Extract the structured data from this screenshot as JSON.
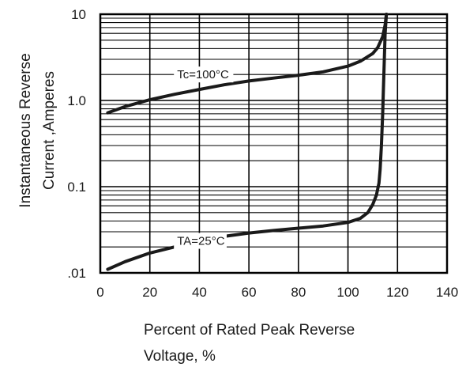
{
  "chart_data": {
    "type": "line",
    "title": "",
    "xlabel_lines": [
      "Percent of Rated Peak Reverse",
      "Voltage, %"
    ],
    "ylabel_lines": [
      "Instantaneous Reverse",
      "Current ,Amperes"
    ],
    "xlim": [
      0,
      140
    ],
    "ylim": [
      0.01,
      10
    ],
    "yscale": "log",
    "grid": true,
    "x_ticks": [
      0,
      20,
      40,
      60,
      80,
      100,
      120,
      140
    ],
    "x_tick_labels": [
      "0",
      "20",
      "40",
      "60",
      "80",
      "100",
      "120",
      "140"
    ],
    "y_ticks": [
      0.01,
      0.1,
      1.0,
      10
    ],
    "y_tick_labels": [
      ".01",
      "0.1",
      "1.0",
      "10"
    ],
    "series": [
      {
        "name": "Tc=100°C",
        "x": [
          3,
          10,
          20,
          30,
          40,
          50,
          60,
          70,
          80,
          90,
          100,
          105,
          110,
          112,
          114,
          115,
          115.5
        ],
        "y": [
          0.72,
          0.85,
          1.02,
          1.18,
          1.34,
          1.52,
          1.68,
          1.82,
          1.96,
          2.15,
          2.5,
          2.85,
          3.5,
          4.1,
          5.5,
          7.5,
          10
        ]
      },
      {
        "name": "TA=25°C",
        "x": [
          3,
          10,
          20,
          30,
          40,
          50,
          60,
          70,
          80,
          90,
          100,
          105,
          108,
          110,
          111.5,
          112.5,
          113,
          113.5,
          114,
          114.5,
          115,
          115.5
        ],
        "y": [
          0.011,
          0.0135,
          0.017,
          0.02,
          0.0235,
          0.0265,
          0.029,
          0.031,
          0.033,
          0.035,
          0.0385,
          0.043,
          0.05,
          0.062,
          0.08,
          0.11,
          0.16,
          0.3,
          0.7,
          2.0,
          6.0,
          10
        ]
      }
    ],
    "annotations": [
      {
        "text": "Tc=100°C",
        "x": 31,
        "y": 2.0
      },
      {
        "text": "TA=25°C",
        "x": 31,
        "y": 0.0235
      }
    ],
    "line_color": "#1a1a1a",
    "grid_color": "#000000"
  }
}
